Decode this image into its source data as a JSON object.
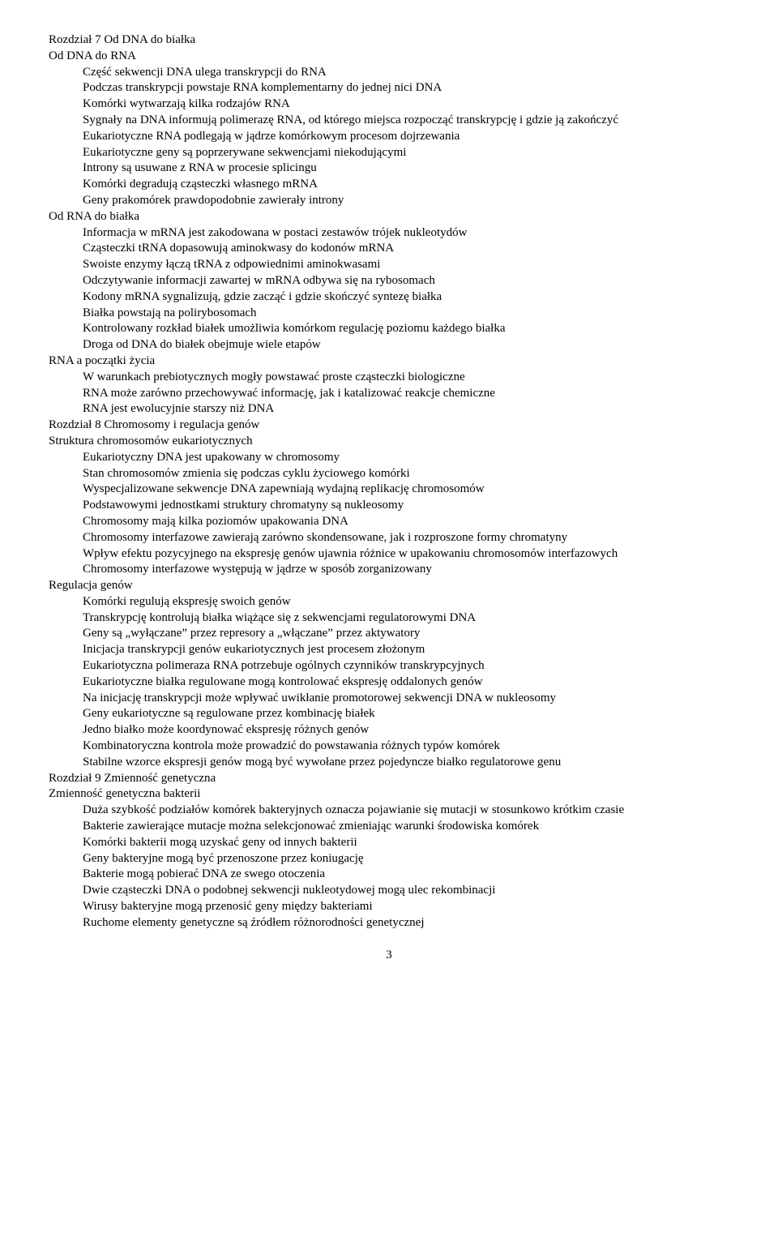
{
  "font": {
    "family": "Times New Roman",
    "size_pt": 12,
    "line_height": 1.32
  },
  "colors": {
    "text": "#000000",
    "background": "#ffffff"
  },
  "page_number": "3",
  "lines": [
    {
      "indent": 0,
      "text": "Rozdział 7 Od DNA do białka"
    },
    {
      "indent": 0,
      "text": "Od DNA do RNA"
    },
    {
      "indent": 1,
      "text": "Część sekwencji DNA ulega transkrypcji do RNA"
    },
    {
      "indent": 1,
      "text": "Podczas transkrypcji powstaje RNA komplementarny do jednej nici DNA"
    },
    {
      "indent": 1,
      "text": "Komórki wytwarzają kilka rodzajów RNA"
    },
    {
      "indent": 1,
      "text": "Sygnały na DNA informują polimerazę RNA, od którego miejsca rozpocząć transkrypcję i gdzie ją zakończyć"
    },
    {
      "indent": 1,
      "text": "Eukariotyczne RNA podlegają w jądrze komórkowym procesom dojrzewania"
    },
    {
      "indent": 1,
      "text": "Eukariotyczne geny są poprzerywane sekwencjami niekodującymi"
    },
    {
      "indent": 1,
      "text": "Introny są usuwane z RNA w procesie splicingu"
    },
    {
      "indent": 1,
      "text": "Komórki degradują cząsteczki własnego mRNA"
    },
    {
      "indent": 1,
      "text": "Geny prakomórek prawdopodobnie zawierały introny"
    },
    {
      "indent": 0,
      "text": "Od RNA do białka"
    },
    {
      "indent": 1,
      "text": "Informacja w mRNA jest zakodowana w postaci zestawów trójek nukleotydów"
    },
    {
      "indent": 1,
      "text": "Cząsteczki tRNA dopasowują aminokwasy do kodonów mRNA"
    },
    {
      "indent": 1,
      "text": "Swoiste enzymy łączą tRNA z odpowiednimi aminokwasami"
    },
    {
      "indent": 1,
      "text": "Odczytywanie informacji zawartej w mRNA odbywa się na rybosomach"
    },
    {
      "indent": 1,
      "text": "Kodony mRNA sygnalizują, gdzie zacząć i gdzie skończyć syntezę białka"
    },
    {
      "indent": 1,
      "text": "Białka powstają na polirybosomach"
    },
    {
      "indent": 1,
      "text": "Kontrolowany rozkład białek umożliwia komórkom regulację poziomu każdego białka"
    },
    {
      "indent": 1,
      "text": "Droga od DNA do białek obejmuje wiele etapów"
    },
    {
      "indent": 0,
      "text": "RNA a początki życia"
    },
    {
      "indent": 1,
      "text": "W warunkach prebiotycznych mogły powstawać proste cząsteczki biologiczne"
    },
    {
      "indent": 1,
      "text": "RNA może zarówno przechowywać informację, jak i katalizować reakcje chemiczne"
    },
    {
      "indent": 1,
      "text": "RNA jest ewolucyjnie starszy niż DNA"
    },
    {
      "indent": 0,
      "text": "Rozdział 8 Chromosomy i regulacja genów"
    },
    {
      "indent": 0,
      "text": "Struktura chromosomów eukariotycznych"
    },
    {
      "indent": 1,
      "text": "Eukariotyczny DNA jest upakowany w chromosomy"
    },
    {
      "indent": 1,
      "text": "Stan chromosomów zmienia się podczas cyklu życiowego komórki"
    },
    {
      "indent": 1,
      "text": "Wyspecjalizowane sekwencje DNA zapewniają wydajną replikację chromosomów"
    },
    {
      "indent": 1,
      "text": "Podstawowymi jednostkami struktury chromatyny są nukleosomy"
    },
    {
      "indent": 1,
      "text": "Chromosomy mają kilka poziomów upakowania DNA"
    },
    {
      "indent": 1,
      "text": "Chromosomy interfazowe zawierają zarówno skondensowane, jak i rozproszone formy chromatyny"
    },
    {
      "indent": 1,
      "text": "Wpływ efektu pozycyjnego na ekspresję genów ujawnia różnice w upakowaniu chromosomów interfazowych"
    },
    {
      "indent": 1,
      "text": "Chromosomy interfazowe występują w jądrze w sposób zorganizowany"
    },
    {
      "indent": 0,
      "text": "Regulacja genów"
    },
    {
      "indent": 1,
      "text": "Komórki regulują ekspresję swoich genów"
    },
    {
      "indent": 1,
      "text": "Transkrypcję kontrolują białka wiążące się z sekwencjami regulatorowymi DNA"
    },
    {
      "indent": 1,
      "text": "Geny są „wyłączane” przez represory a „włączane” przez aktywatory"
    },
    {
      "indent": 1,
      "text": "Inicjacja transkrypcji genów eukariotycznych jest procesem złożonym"
    },
    {
      "indent": 1,
      "text": "Eukariotyczna polimeraza RNA potrzebuje ogólnych czynników transkrypcyjnych"
    },
    {
      "indent": 1,
      "text": "Eukariotyczne białka regulowane mogą kontrolować ekspresję oddalonych genów"
    },
    {
      "indent": 1,
      "text": "Na inicjację transkrypcji może wpływać uwikłanie promotorowej sekwencji DNA w nukleosomy"
    },
    {
      "indent": 1,
      "text": "Geny eukariotyczne są regulowane przez kombinację białek"
    },
    {
      "indent": 1,
      "text": "Jedno białko może koordynować ekspresję różnych genów"
    },
    {
      "indent": 1,
      "text": "Kombinatoryczna kontrola może prowadzić do powstawania różnych typów komórek"
    },
    {
      "indent": 1,
      "text": "Stabilne wzorce ekspresji genów mogą być wywołane przez pojedyncze białko regulatorowe genu"
    },
    {
      "indent": 0,
      "text": "Rozdział 9 Zmienność genetyczna"
    },
    {
      "indent": 0,
      "text": "Zmienność genetyczna bakterii"
    },
    {
      "indent": 1,
      "justify": true,
      "text": "Duża szybkość podziałów komórek bakteryjnych oznacza pojawianie się mutacji w stosunkowo krótkim czasie"
    },
    {
      "indent": 1,
      "text": "Bakterie zawierające mutacje można selekcjonować zmieniając warunki środowiska komórek"
    },
    {
      "indent": 1,
      "text": "Komórki bakterii mogą uzyskać geny od innych bakterii"
    },
    {
      "indent": 1,
      "text": "Geny bakteryjne mogą być przenoszone przez koniugację"
    },
    {
      "indent": 1,
      "text": "Bakterie mogą pobierać DNA ze swego otoczenia"
    },
    {
      "indent": 1,
      "text": "Dwie cząsteczki DNA o podobnej sekwencji nukleotydowej mogą ulec rekombinacji"
    },
    {
      "indent": 1,
      "text": "Wirusy bakteryjne mogą przenosić geny między bakteriami"
    },
    {
      "indent": 1,
      "text": "Ruchome elementy genetyczne są źródłem różnorodności genetycznej"
    }
  ]
}
